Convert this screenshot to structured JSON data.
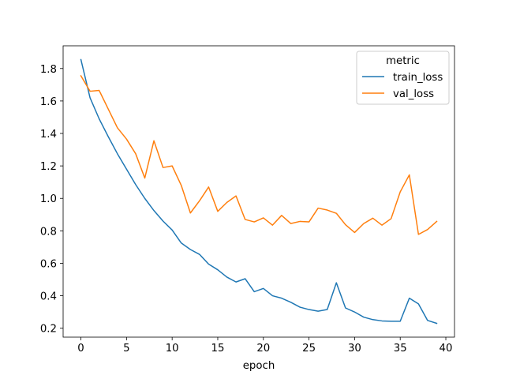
{
  "chart_data": {
    "type": "line",
    "title": "",
    "xlabel": "epoch",
    "ylabel": "",
    "xlim": [
      -1.95,
      40.95
    ],
    "ylim": [
      0.145,
      1.94
    ],
    "xticks": [
      0,
      5,
      10,
      15,
      20,
      25,
      30,
      35,
      40
    ],
    "yticks": [
      0.2,
      0.4,
      0.6,
      0.8,
      1.0,
      1.2,
      1.4,
      1.6,
      1.8
    ],
    "ytick_labels": [
      "0.2",
      "0.4",
      "0.6",
      "0.8",
      "1.0",
      "1.2",
      "1.4",
      "1.6",
      "1.8"
    ],
    "legend": {
      "title": "metric",
      "position": "top-right"
    },
    "x": [
      0,
      1,
      2,
      3,
      4,
      5,
      6,
      7,
      8,
      9,
      10,
      11,
      12,
      13,
      14,
      15,
      16,
      17,
      18,
      19,
      20,
      21,
      22,
      23,
      24,
      25,
      26,
      27,
      28,
      29,
      30,
      31,
      32,
      33,
      34,
      35,
      36,
      37,
      38,
      39
    ],
    "series": [
      {
        "name": "train_loss",
        "color": "#1f77b4",
        "values": [
          1.855,
          1.62,
          1.49,
          1.38,
          1.275,
          1.18,
          1.085,
          1.0,
          0.925,
          0.86,
          0.805,
          0.725,
          0.685,
          0.655,
          0.595,
          0.56,
          0.515,
          0.485,
          0.505,
          0.425,
          0.445,
          0.4,
          0.385,
          0.36,
          0.33,
          0.315,
          0.305,
          0.315,
          0.48,
          0.325,
          0.3,
          0.268,
          0.253,
          0.245,
          0.243,
          0.243,
          0.385,
          0.35,
          0.248,
          0.23
        ]
      },
      {
        "name": "val_loss",
        "color": "#ff7f0e",
        "values": [
          1.755,
          1.66,
          1.665,
          1.55,
          1.435,
          1.365,
          1.275,
          1.125,
          1.355,
          1.19,
          1.2,
          1.08,
          0.91,
          0.985,
          1.07,
          0.92,
          0.975,
          1.015,
          0.87,
          0.855,
          0.88,
          0.835,
          0.895,
          0.845,
          0.858,
          0.855,
          0.94,
          0.928,
          0.908,
          0.838,
          0.79,
          0.845,
          0.878,
          0.835,
          0.875,
          1.04,
          1.145,
          0.778,
          0.808,
          0.858
        ]
      }
    ]
  }
}
